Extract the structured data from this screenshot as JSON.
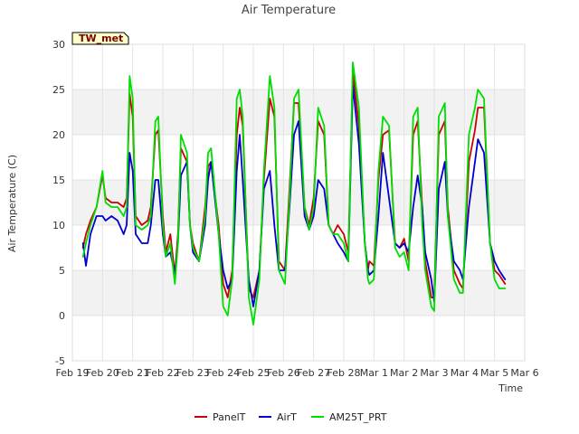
{
  "chart_data": {
    "type": "line",
    "title": "Air Temperature",
    "xlabel": "Time",
    "ylabel": "Air Temperature (C)",
    "badge": "TW_met",
    "ylim": [
      -5,
      30
    ],
    "yticks": [
      -5,
      0,
      5,
      10,
      15,
      20,
      25,
      30
    ],
    "xlim": [
      0,
      15
    ],
    "xticks": [
      {
        "v": 0,
        "label": "Feb 19"
      },
      {
        "v": 1,
        "label": "Feb 20"
      },
      {
        "v": 2,
        "label": "Feb 21"
      },
      {
        "v": 3,
        "label": "Feb 22"
      },
      {
        "v": 4,
        "label": "Feb 23"
      },
      {
        "v": 5,
        "label": "Feb 24"
      },
      {
        "v": 6,
        "label": "Feb 25"
      },
      {
        "v": 7,
        "label": "Feb 26"
      },
      {
        "v": 8,
        "label": "Feb 27"
      },
      {
        "v": 9,
        "label": "Feb 28"
      },
      {
        "v": 10,
        "label": "Mar 1"
      },
      {
        "v": 11,
        "label": "Mar 2"
      },
      {
        "v": 12,
        "label": "Mar 3"
      },
      {
        "v": 13,
        "label": "Mar 4"
      },
      {
        "v": 14,
        "label": "Mar 5"
      },
      {
        "v": 15,
        "label": "Mar 6"
      }
    ],
    "grid": true,
    "legend_position": "bottom",
    "series": [
      {
        "name": "PanelT",
        "color": "#cc0000",
        "x": [
          0.35,
          0.45,
          0.6,
          0.8,
          1.0,
          1.1,
          1.3,
          1.5,
          1.7,
          1.8,
          1.9,
          2.0,
          2.1,
          2.3,
          2.5,
          2.6,
          2.75,
          2.85,
          3.0,
          3.1,
          3.25,
          3.4,
          3.5,
          3.6,
          3.8,
          3.9,
          4.0,
          4.2,
          4.4,
          4.5,
          4.6,
          4.85,
          5.0,
          5.15,
          5.3,
          5.45,
          5.55,
          5.65,
          5.85,
          6.0,
          6.2,
          6.35,
          6.55,
          6.7,
          6.85,
          7.05,
          7.2,
          7.35,
          7.5,
          7.7,
          7.85,
          8.0,
          8.15,
          8.35,
          8.5,
          8.65,
          8.8,
          9.0,
          9.15,
          9.3,
          9.5,
          9.7,
          9.8,
          9.85,
          10.0,
          10.15,
          10.3,
          10.5,
          10.7,
          10.85,
          11.0,
          11.15,
          11.3,
          11.45,
          11.6,
          11.7,
          11.9,
          12.0,
          12.15,
          12.35,
          12.45,
          12.65,
          12.85,
          12.95,
          13.15,
          13.35,
          13.45,
          13.65,
          13.85,
          14.0,
          14.15,
          14.35
        ],
        "y": [
          7.5,
          9,
          10.5,
          12,
          15.5,
          13,
          12.5,
          12.5,
          12,
          13,
          24.5,
          22,
          11,
          10,
          10.5,
          12,
          20,
          20.5,
          11,
          7,
          9,
          4.5,
          9,
          18.5,
          17,
          10,
          8,
          6,
          12,
          16.5,
          17,
          10,
          3.5,
          2,
          5,
          20,
          23,
          21,
          3,
          2,
          5,
          15,
          24,
          22,
          6,
          5,
          14,
          23.5,
          23.5,
          12,
          10,
          13,
          21.5,
          20,
          10,
          9,
          10,
          9,
          7,
          27,
          21,
          8,
          5,
          6,
          5.5,
          15,
          20,
          20.5,
          8,
          7.5,
          8.5,
          6,
          20,
          21.5,
          12,
          6,
          2,
          2,
          20,
          21.5,
          12,
          5,
          3.5,
          3,
          17,
          20.5,
          23,
          23,
          8,
          5,
          4.5,
          3.5
        ]
      },
      {
        "name": "AirT",
        "color": "#0000cc",
        "x": [
          0.35,
          0.45,
          0.6,
          0.8,
          1.0,
          1.1,
          1.3,
          1.5,
          1.7,
          1.8,
          1.9,
          2.0,
          2.1,
          2.3,
          2.5,
          2.6,
          2.75,
          2.85,
          3.0,
          3.1,
          3.25,
          3.4,
          3.5,
          3.6,
          3.8,
          3.9,
          4.0,
          4.2,
          4.4,
          4.5,
          4.6,
          4.85,
          5.0,
          5.15,
          5.3,
          5.45,
          5.55,
          5.65,
          5.85,
          6.0,
          6.2,
          6.35,
          6.55,
          6.7,
          6.85,
          7.05,
          7.2,
          7.35,
          7.5,
          7.7,
          7.85,
          8.0,
          8.15,
          8.35,
          8.5,
          8.65,
          8.8,
          9.0,
          9.15,
          9.3,
          9.5,
          9.7,
          9.8,
          9.85,
          10.0,
          10.15,
          10.3,
          10.5,
          10.7,
          10.85,
          11.0,
          11.15,
          11.3,
          11.45,
          11.6,
          11.7,
          11.9,
          12.0,
          12.15,
          12.35,
          12.45,
          12.65,
          12.85,
          12.95,
          13.15,
          13.35,
          13.45,
          13.65,
          13.85,
          14.0,
          14.15,
          14.35
        ],
        "y": [
          8,
          5.5,
          9,
          11,
          11,
          10.5,
          11,
          10.5,
          9,
          10,
          18,
          16,
          9,
          8,
          8,
          10,
          15,
          15,
          9,
          6.5,
          7,
          4.5,
          8,
          15.5,
          17,
          10,
          7,
          6,
          10,
          15,
          17,
          9,
          5,
          3,
          4,
          16,
          20,
          15,
          4,
          1,
          5,
          14,
          16,
          10,
          5,
          5,
          12,
          20,
          21.5,
          11,
          9.5,
          11,
          15,
          14,
          10,
          9,
          8,
          7,
          6,
          25.5,
          19,
          8,
          5,
          4.5,
          5,
          11,
          18,
          13,
          8,
          7.5,
          8,
          7,
          12,
          15.5,
          12,
          7,
          4,
          1.5,
          14,
          17,
          11,
          6,
          5,
          4,
          12,
          17,
          19.5,
          18,
          8,
          6,
          5,
          4
        ]
      },
      {
        "name": "AM25T_PRT",
        "color": "#00dd00",
        "x": [
          0.35,
          0.45,
          0.6,
          0.8,
          1.0,
          1.1,
          1.3,
          1.5,
          1.7,
          1.8,
          1.9,
          2.0,
          2.1,
          2.3,
          2.5,
          2.6,
          2.75,
          2.85,
          3.0,
          3.1,
          3.25,
          3.4,
          3.5,
          3.6,
          3.8,
          3.9,
          4.0,
          4.2,
          4.4,
          4.5,
          4.6,
          4.85,
          5.0,
          5.15,
          5.3,
          5.45,
          5.55,
          5.65,
          5.85,
          6.0,
          6.2,
          6.35,
          6.55,
          6.7,
          6.85,
          7.05,
          7.2,
          7.35,
          7.5,
          7.7,
          7.85,
          8.0,
          8.15,
          8.35,
          8.5,
          8.65,
          8.8,
          9.0,
          9.15,
          9.3,
          9.5,
          9.7,
          9.8,
          9.85,
          10.0,
          10.15,
          10.3,
          10.5,
          10.7,
          10.85,
          11.0,
          11.15,
          11.3,
          11.45,
          11.6,
          11.7,
          11.9,
          12.0,
          12.15,
          12.35,
          12.45,
          12.65,
          12.85,
          12.95,
          13.15,
          13.35,
          13.45,
          13.65,
          13.85,
          14.0,
          14.15,
          14.35
        ],
        "y": [
          6.5,
          8,
          10,
          12,
          16,
          12.5,
          12,
          12,
          11,
          12,
          26.5,
          24,
          10,
          9.5,
          10,
          11,
          21.5,
          22,
          10,
          6.5,
          8,
          3.5,
          8,
          20,
          18,
          10,
          7.5,
          6,
          11,
          18,
          18.5,
          9,
          1,
          0,
          4,
          24,
          25,
          22,
          2,
          -1,
          4,
          16,
          26.5,
          23,
          5,
          3.5,
          13,
          24,
          25,
          12,
          9.5,
          12,
          23,
          21,
          10,
          9,
          9,
          8,
          6,
          28,
          23,
          8,
          4,
          3.5,
          4,
          16,
          22,
          21,
          7.5,
          6.5,
          7,
          5,
          22,
          23,
          10,
          5,
          1,
          0.5,
          22,
          23.5,
          11,
          4,
          2.5,
          2.5,
          20,
          23,
          25,
          24,
          8,
          4,
          3,
          3
        ]
      }
    ]
  }
}
